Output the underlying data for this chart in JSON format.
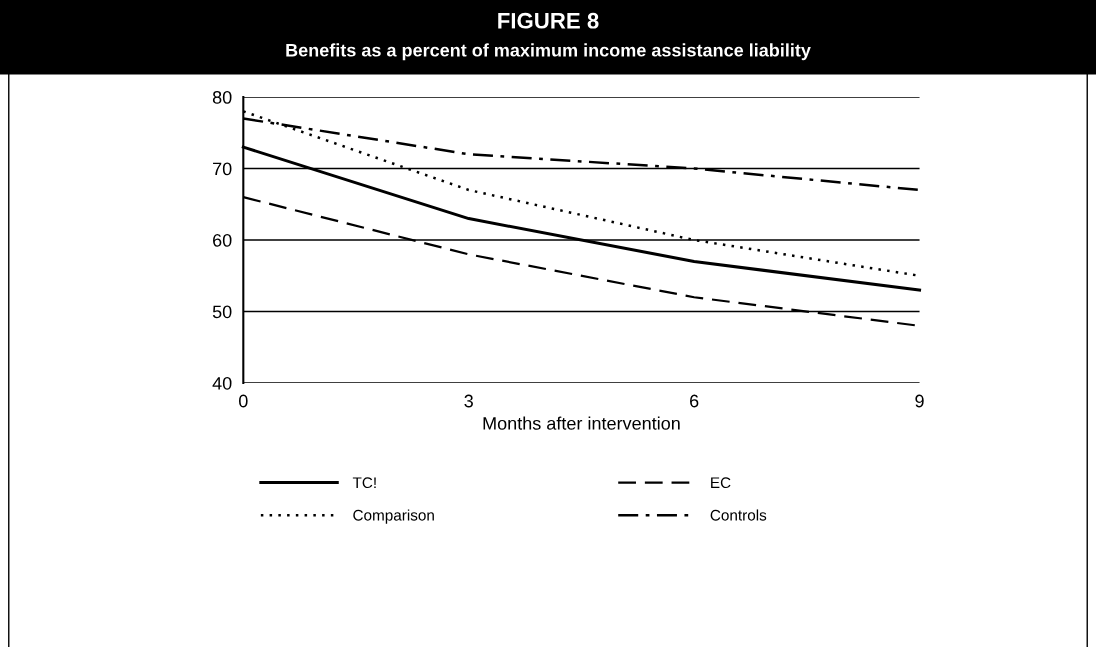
{
  "chart_data": {
    "type": "line",
    "title": "FIGURE 8",
    "subtitle": "Benefits as a percent of maximum income assistance liability",
    "xlabel": "Months after intervention",
    "x": [
      0,
      3,
      6,
      9
    ],
    "series": [
      {
        "name": "TC!",
        "color": "#000000",
        "line_style": "solid",
        "values": [
          73,
          63,
          57,
          53
        ]
      },
      {
        "name": "EC",
        "color": "#000000",
        "line_style": "dashed",
        "values": [
          66,
          58,
          52,
          48
        ]
      },
      {
        "name": "Comparison",
        "color": "#000000",
        "line_style": "dotted",
        "values": [
          78,
          67,
          60,
          55
        ]
      },
      {
        "name": "Controls",
        "color": "#000000",
        "line_style": "dashdot",
        "values": [
          77,
          72,
          70,
          67
        ]
      }
    ],
    "xlim": [
      0,
      9
    ],
    "xticks": [
      0,
      3,
      6,
      9
    ],
    "ylim": [
      40,
      80
    ],
    "yticks": [
      40,
      50,
      60,
      70,
      80
    ],
    "grid": "y",
    "legend": "bottom",
    "marker": "none"
  }
}
